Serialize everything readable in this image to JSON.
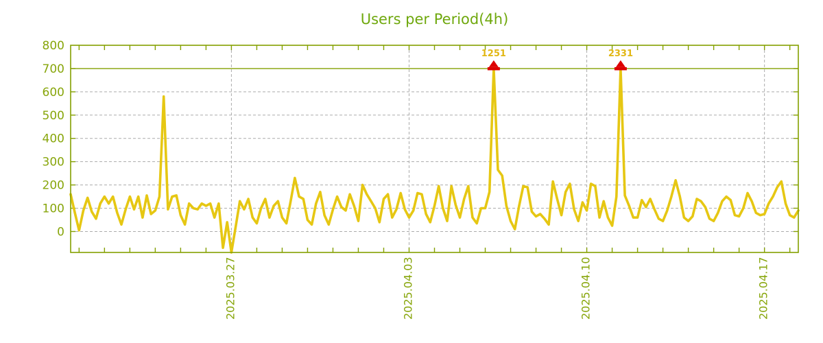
{
  "title": "Users per Period(4h)",
  "colors": {
    "line": "#e6c713",
    "axis": "#84a000",
    "threshold_line": "#84a000",
    "title_text": "#6fa80d",
    "tick_text": "#88a60c",
    "grid": "#ababab",
    "marker": "#dd0000",
    "annotation_text": "#e2b714",
    "background": "#ffffff"
  },
  "chart_data": {
    "type": "line",
    "title": "Users per Period(4h)",
    "series_name": "Users",
    "x_start": "2025-03-20 16:00",
    "interval_hours": 4,
    "ylim": [
      -90,
      800
    ],
    "clip_level": 700,
    "grid": true,
    "yticks": [
      0,
      100,
      200,
      300,
      400,
      500,
      600,
      700,
      800
    ],
    "xticks": [
      {
        "label": "2025.03.27",
        "index": 38
      },
      {
        "label": "2025.04.03",
        "index": 80
      },
      {
        "label": "2025.04.10",
        "index": 122
      },
      {
        "label": "2025.04.17",
        "index": 164
      }
    ],
    "minor_xtick_first_index": 2,
    "minor_xtick_every": 6,
    "values": [
      160,
      80,
      5,
      90,
      145,
      85,
      55,
      120,
      150,
      120,
      150,
      80,
      30,
      95,
      150,
      95,
      150,
      60,
      155,
      75,
      90,
      150,
      580,
      95,
      150,
      155,
      70,
      30,
      120,
      100,
      95,
      120,
      110,
      120,
      60,
      120,
      -70,
      40,
      -90,
      20,
      130,
      95,
      140,
      60,
      35,
      100,
      140,
      60,
      110,
      130,
      60,
      35,
      130,
      230,
      150,
      140,
      50,
      30,
      120,
      170,
      70,
      30,
      95,
      150,
      105,
      90,
      160,
      110,
      45,
      200,
      160,
      130,
      100,
      40,
      140,
      160,
      60,
      95,
      165,
      95,
      60,
      90,
      165,
      160,
      75,
      40,
      110,
      195,
      100,
      45,
      195,
      115,
      60,
      140,
      195,
      60,
      35,
      100,
      100,
      170,
      1251,
      265,
      240,
      110,
      45,
      10,
      110,
      195,
      190,
      85,
      65,
      75,
      55,
      30,
      215,
      140,
      70,
      170,
      205,
      95,
      45,
      125,
      90,
      205,
      195,
      60,
      130,
      60,
      25,
      150,
      2331,
      155,
      110,
      60,
      60,
      135,
      105,
      140,
      95,
      55,
      45,
      90,
      150,
      220,
      150,
      60,
      45,
      65,
      140,
      130,
      105,
      55,
      45,
      80,
      130,
      150,
      135,
      70,
      65,
      100,
      165,
      130,
      80,
      70,
      75,
      120,
      150,
      190,
      215,
      120,
      70,
      60,
      90
    ],
    "annotations": [
      {
        "index": 100,
        "value": 1251,
        "label": "1251"
      },
      {
        "index": 130,
        "value": 2331,
        "label": "2331"
      }
    ]
  }
}
